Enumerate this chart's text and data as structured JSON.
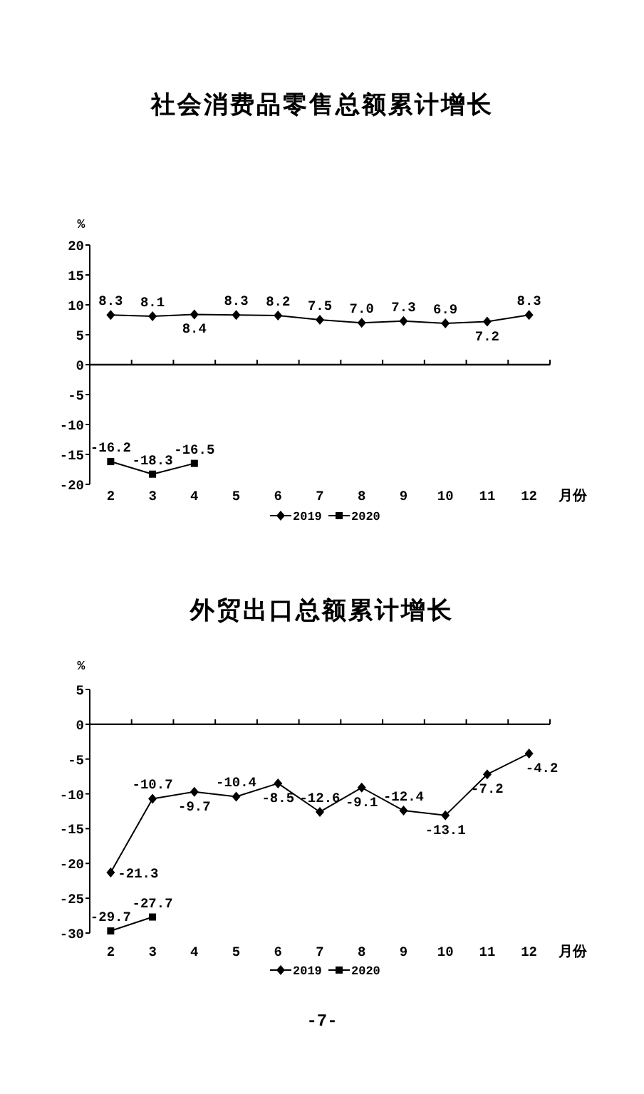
{
  "chart_data": [
    {
      "type": "line",
      "title": "社会消费品零售总额累计增长",
      "ylabel": "%",
      "xlabel": "月份",
      "categories": [
        "2",
        "3",
        "4",
        "5",
        "6",
        "7",
        "8",
        "9",
        "10",
        "11",
        "12"
      ],
      "series": [
        {
          "name": "2019",
          "color": "#000000",
          "marker": "diamond",
          "values": [
            8.3,
            8.1,
            8.4,
            8.3,
            8.2,
            7.5,
            7.0,
            7.3,
            6.9,
            7.2,
            8.3
          ],
          "value_labels": [
            "8.3",
            "8.1",
            "8.4",
            "8.3",
            "8.2",
            "7.5",
            "7.0",
            "7.3",
            "6.9",
            "7.2",
            "8.3"
          ]
        },
        {
          "name": "2020",
          "color": "#000000",
          "marker": "square",
          "values": [
            -16.2,
            -18.3,
            -16.5,
            null,
            null,
            null,
            null,
            null,
            null,
            null,
            null
          ],
          "value_labels": [
            "-16.2",
            "-18.3",
            "-16.5",
            null,
            null,
            null,
            null,
            null,
            null,
            null,
            null
          ]
        }
      ],
      "ylim": [
        -20,
        20
      ],
      "yticks": [
        -20,
        -15,
        -10,
        -5,
        0,
        5,
        10,
        15,
        20
      ],
      "legend": "bottom"
    },
    {
      "type": "line",
      "title": "外贸出口总额累计增长",
      "ylabel": "%",
      "xlabel": "月份",
      "categories": [
        "2",
        "3",
        "4",
        "5",
        "6",
        "7",
        "8",
        "9",
        "10",
        "11",
        "12"
      ],
      "series": [
        {
          "name": "2019",
          "color": "#000000",
          "marker": "diamond",
          "values": [
            -21.3,
            -10.7,
            -9.7,
            -10.4,
            -8.5,
            -12.6,
            -9.1,
            -12.4,
            -13.1,
            -7.2,
            -4.2
          ],
          "value_labels": [
            "-21.3",
            "-10.7",
            "-9.7",
            "-10.4",
            "-8.5",
            "-12.6",
            "-9.1",
            "-12.4",
            "-13.1",
            "-7.2",
            "-4.2"
          ]
        },
        {
          "name": "2020",
          "color": "#000000",
          "marker": "square",
          "values": [
            -29.7,
            -27.7,
            null,
            null,
            null,
            null,
            null,
            null,
            null,
            null,
            null
          ],
          "value_labels": [
            "-29.7",
            "-27.7",
            null,
            null,
            null,
            null,
            null,
            null,
            null,
            null,
            null
          ]
        }
      ],
      "ylim": [
        -30,
        5
      ],
      "yticks": [
        -30,
        -25,
        -20,
        -15,
        -10,
        -5,
        0,
        5
      ],
      "legend": "bottom",
      "annotations": [
        "-7-"
      ]
    }
  ]
}
